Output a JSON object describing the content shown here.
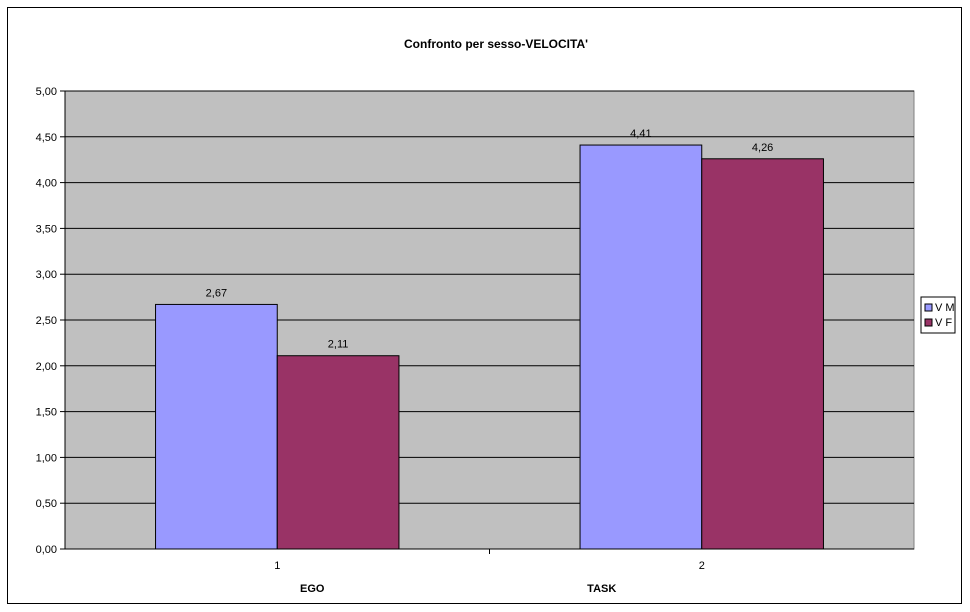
{
  "chart_data": {
    "type": "bar",
    "title": "Confronto per sesso-VELOCITA'",
    "categories": [
      "1",
      "2"
    ],
    "category_group_labels": [
      "EGO",
      "TASK"
    ],
    "series": [
      {
        "name": "V M",
        "values": [
          2.67,
          4.41
        ],
        "value_labels": [
          "2,67",
          "4,41"
        ],
        "color": "#9999ff"
      },
      {
        "name": "V F",
        "values": [
          2.11,
          4.26
        ],
        "value_labels": [
          "2,11",
          "4,26"
        ],
        "color": "#993366"
      }
    ],
    "ylim": [
      0,
      5
    ],
    "y_ticks": [
      0,
      0.5,
      1,
      1.5,
      2,
      2.5,
      3,
      3.5,
      4,
      4.5,
      5
    ],
    "y_tick_labels": [
      "0,00",
      "0,50",
      "1,00",
      "1,50",
      "2,00",
      "2,50",
      "3,00",
      "3,50",
      "4,00",
      "4,50",
      "5,00"
    ],
    "grid": true,
    "plot_background": "#c0c0c0",
    "legend_position": "right"
  }
}
